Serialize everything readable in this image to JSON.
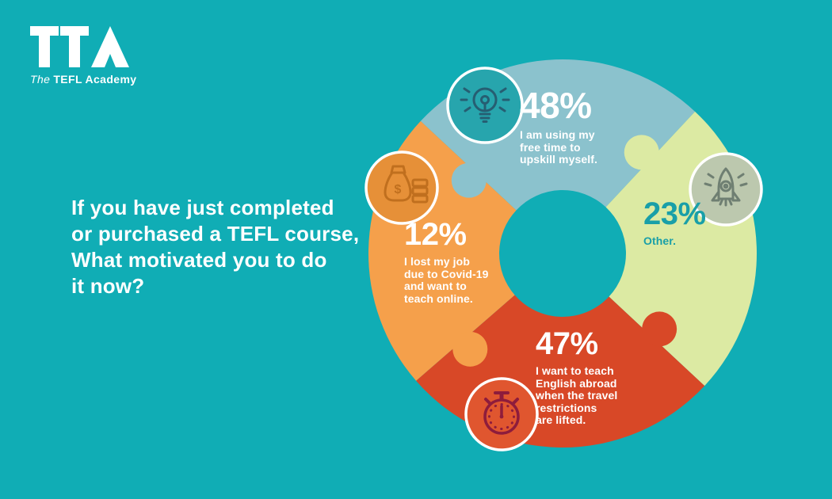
{
  "background_color": "#10ADB5",
  "logo": {
    "acronym": "TTA",
    "tagline_the": "The",
    "tagline_rest": "TEFL Academy"
  },
  "question": {
    "text": "If you have just completed or purchased a TEFL course, What motivated you to do it now?",
    "lines": "If you have just completed\nor purchased a TEFL course,\nWhat motivated you to do\nit now?"
  },
  "chart_data": {
    "type": "pie",
    "subtype": "puzzle-donut",
    "title": "If you have just completed or purchased a TEFL course, What motivated you to do it now?",
    "legend_position": "labels-on-segments",
    "segments": [
      {
        "name": "upskill",
        "value": 48,
        "value_label": "48%",
        "label": "I am using my free time to upskill myself.",
        "label_display": "I am using my\nfree time to\nupskill myself.",
        "color": "#8BC2CD",
        "text_color": "#FFFFFF",
        "icon": "lightbulb-idea",
        "icon_circle_fill": "#27A5AD",
        "icon_stroke": "#265E72",
        "start_angle": 137,
        "end_angle": 47,
        "tab_radius": 150
      },
      {
        "name": "other",
        "value": 23,
        "value_label": "23%",
        "label": "Other.",
        "label_display": "Other.",
        "color": "#DCEAA3",
        "text_color": "#199FA8",
        "icon": "rocket",
        "icon_circle_fill": "#BCC8AE",
        "icon_stroke": "#6F7F72",
        "start_angle": 47,
        "end_angle": -43,
        "tab_radius": 162
      },
      {
        "name": "teach-abroad",
        "value": 47,
        "value_label": "47%",
        "label": "I want to teach English abroad when the travel restrictions are lifted.",
        "label_display": "I want to teach\nEnglish abroad\nwhen the travel\nrestrictions\nare lifted.",
        "color": "#D84827",
        "text_color": "#FFFFFF",
        "icon": "stopwatch",
        "icon_circle_fill": "#E0562F",
        "icon_stroke": "#8E1C3C",
        "start_angle": -43,
        "end_angle": -139,
        "tab_radius": 155
      },
      {
        "name": "lost-job",
        "value": 12,
        "value_label": "12%",
        "label": "I lost my job due to Covid-19 and want to teach online.",
        "label_display": "I lost my job\ndue to Covid-19\nand want to\nteach online.",
        "color": "#F5A04B",
        "text_color": "#FFFFFF",
        "icon": "money-bag",
        "icon_circle_fill": "#E69038",
        "icon_stroke": "#C06F1E",
        "start_angle": -139,
        "end_angle": -223,
        "tab_radius": 168
      }
    ]
  }
}
